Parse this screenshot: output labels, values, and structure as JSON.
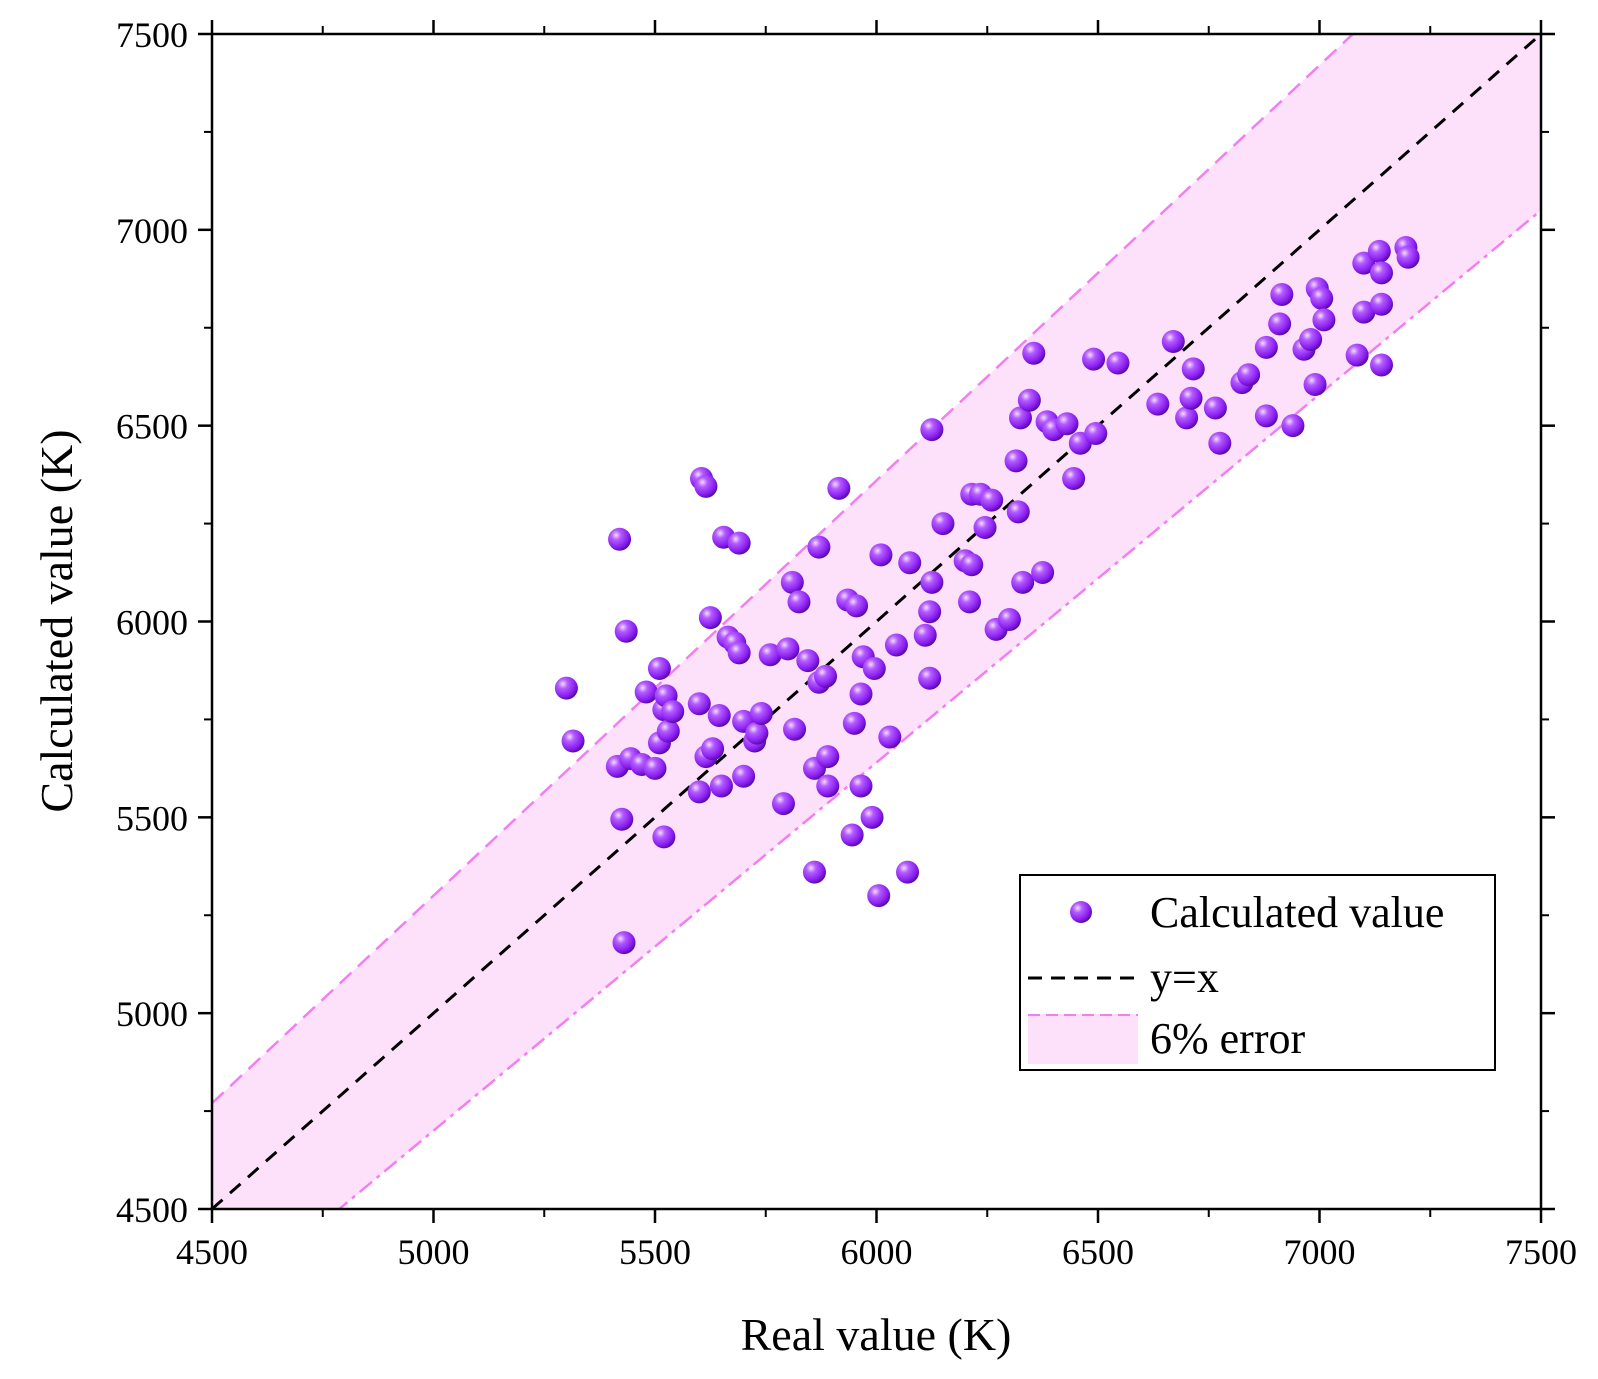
{
  "chart_data": {
    "type": "scatter",
    "xlabel": "Real value (K)",
    "ylabel": "Calculated value (K)",
    "xlim": [
      4500,
      7500
    ],
    "ylim": [
      4500,
      7500
    ],
    "xticks": [
      4500,
      5000,
      5500,
      6000,
      6500,
      7000,
      7500
    ],
    "yticks": [
      4500,
      5000,
      5500,
      6000,
      6500,
      7000,
      7500
    ],
    "error_band_percent": 6,
    "legend": {
      "position": "bottom-right",
      "entries": [
        "Calculated value",
        "y=x",
        "6% error"
      ]
    },
    "colors": {
      "points": "#9b30ff",
      "band_fill": "#fde0fa",
      "band_edge": "#f27ff0",
      "identity_line": "#000000"
    },
    "series": [
      {
        "name": "Calculated value",
        "points": [
          [
            5300,
            5830
          ],
          [
            5315,
            5695
          ],
          [
            5415,
            5630
          ],
          [
            5420,
            6210
          ],
          [
            5425,
            5495
          ],
          [
            5430,
            5180
          ],
          [
            5435,
            5975
          ],
          [
            5445,
            5650
          ],
          [
            5470,
            5635
          ],
          [
            5480,
            5820
          ],
          [
            5500,
            5625
          ],
          [
            5510,
            5880
          ],
          [
            5510,
            5690
          ],
          [
            5520,
            5775
          ],
          [
            5520,
            5450
          ],
          [
            5525,
            5810
          ],
          [
            5530,
            5720
          ],
          [
            5540,
            5770
          ],
          [
            5600,
            5790
          ],
          [
            5600,
            5565
          ],
          [
            5605,
            6365
          ],
          [
            5615,
            6345
          ],
          [
            5615,
            5655
          ],
          [
            5625,
            6010
          ],
          [
            5630,
            5675
          ],
          [
            5645,
            5760
          ],
          [
            5650,
            5580
          ],
          [
            5655,
            6215
          ],
          [
            5665,
            5960
          ],
          [
            5680,
            5945
          ],
          [
            5690,
            6200
          ],
          [
            5690,
            5920
          ],
          [
            5700,
            5745
          ],
          [
            5700,
            5605
          ],
          [
            5725,
            5695
          ],
          [
            5730,
            5715
          ],
          [
            5740,
            5765
          ],
          [
            5760,
            5915
          ],
          [
            5790,
            5535
          ],
          [
            5800,
            5930
          ],
          [
            5810,
            6100
          ],
          [
            5815,
            5725
          ],
          [
            5825,
            6050
          ],
          [
            5845,
            5900
          ],
          [
            5860,
            5360
          ],
          [
            5860,
            5625
          ],
          [
            5870,
            6190
          ],
          [
            5870,
            5845
          ],
          [
            5885,
            5860
          ],
          [
            5890,
            5580
          ],
          [
            5890,
            5655
          ],
          [
            5915,
            6340
          ],
          [
            5935,
            6055
          ],
          [
            5945,
            5455
          ],
          [
            5950,
            5740
          ],
          [
            5955,
            6040
          ],
          [
            5965,
            5815
          ],
          [
            5965,
            5580
          ],
          [
            5970,
            5910
          ],
          [
            5990,
            5500
          ],
          [
            5995,
            5880
          ],
          [
            6005,
            5300
          ],
          [
            6010,
            6170
          ],
          [
            6030,
            5705
          ],
          [
            6045,
            5940
          ],
          [
            6070,
            5360
          ],
          [
            6075,
            6150
          ],
          [
            6110,
            5965
          ],
          [
            6120,
            5855
          ],
          [
            6120,
            6025
          ],
          [
            6125,
            6490
          ],
          [
            6125,
            6100
          ],
          [
            6150,
            6250
          ],
          [
            6200,
            6155
          ],
          [
            6210,
            6050
          ],
          [
            6215,
            6325
          ],
          [
            6215,
            6145
          ],
          [
            6235,
            6325
          ],
          [
            6245,
            6240
          ],
          [
            6260,
            6310
          ],
          [
            6270,
            5980
          ],
          [
            6300,
            6005
          ],
          [
            6315,
            6410
          ],
          [
            6320,
            6280
          ],
          [
            6325,
            6520
          ],
          [
            6330,
            6100
          ],
          [
            6345,
            6565
          ],
          [
            6355,
            6685
          ],
          [
            6375,
            6125
          ],
          [
            6385,
            6510
          ],
          [
            6400,
            6490
          ],
          [
            6430,
            6505
          ],
          [
            6445,
            6365
          ],
          [
            6460,
            6455
          ],
          [
            6490,
            6670
          ],
          [
            6495,
            6480
          ],
          [
            6545,
            6660
          ],
          [
            6635,
            6555
          ],
          [
            6670,
            6715
          ],
          [
            6700,
            6520
          ],
          [
            6710,
            6570
          ],
          [
            6715,
            6645
          ],
          [
            6765,
            6545
          ],
          [
            6775,
            6455
          ],
          [
            6825,
            6610
          ],
          [
            6840,
            6630
          ],
          [
            6880,
            6700
          ],
          [
            6880,
            6525
          ],
          [
            6910,
            6760
          ],
          [
            6915,
            6835
          ],
          [
            6940,
            6500
          ],
          [
            6965,
            6695
          ],
          [
            6980,
            6720
          ],
          [
            6990,
            6605
          ],
          [
            6995,
            6850
          ],
          [
            7005,
            6825
          ],
          [
            7010,
            6770
          ],
          [
            7085,
            6680
          ],
          [
            7100,
            6790
          ],
          [
            7100,
            6915
          ],
          [
            7135,
            6945
          ],
          [
            7140,
            6810
          ],
          [
            7140,
            6890
          ],
          [
            7140,
            6655
          ],
          [
            7195,
            6955
          ],
          [
            7200,
            6930
          ]
        ]
      }
    ]
  }
}
